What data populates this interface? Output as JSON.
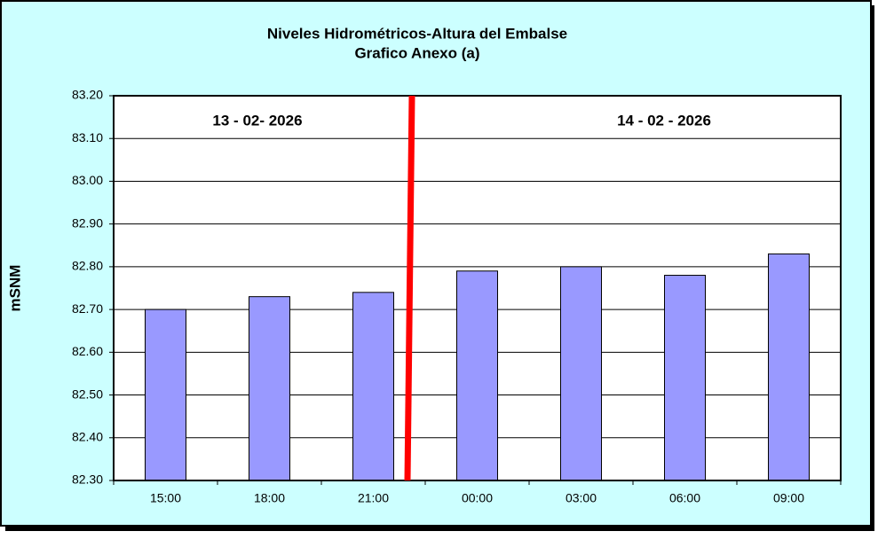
{
  "chart_data": {
    "type": "bar",
    "title": "Niveles Hidrométricos-Altura del Embalse",
    "subtitle": "Grafico Anexo (a)",
    "y_label": "mSNM",
    "annotations": [
      "13 - 02- 2026",
      "14 - 02 - 2026"
    ],
    "categories": [
      "15:00",
      "18:00",
      "21:00",
      "00:00",
      "03:00",
      "06:00",
      "09:00"
    ],
    "values": [
      82.7,
      82.73,
      82.74,
      82.79,
      82.8,
      82.78,
      82.83
    ],
    "color": "#9999ff",
    "ylim": [
      82.3,
      83.2
    ],
    "yticks": [
      {
        "value": 82.3,
        "label": "82.30"
      },
      {
        "value": 82.4,
        "label": "82.40"
      },
      {
        "value": 82.5,
        "label": "82.50"
      },
      {
        "value": 82.6,
        "label": "82.60"
      },
      {
        "value": 82.7,
        "label": "82.70"
      },
      {
        "value": 82.8,
        "label": "82.80"
      },
      {
        "value": 82.9,
        "label": "82.90"
      },
      {
        "value": 83.0,
        "label": "83.00"
      },
      {
        "value": 83.1,
        "label": "83.10"
      },
      {
        "value": 83.2,
        "label": "83.20"
      }
    ],
    "grid": true
  }
}
